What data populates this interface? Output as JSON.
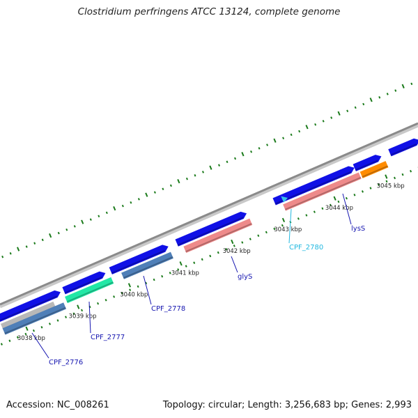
{
  "title": "Clostridium perfringens ATCC 13124, complete genome",
  "footer": {
    "accession": "Accession: NC_008261",
    "summary": "Topology: circular; Length: 3,256,683 bp; Genes: 2,993"
  },
  "colors": {
    "backbone": "#8a8a8a",
    "forward_cds": "#1010e6",
    "orf_salmon": "#ee8a8a",
    "orf_steelblue": "#4f7fb8",
    "orf_aqua": "#22e8a6",
    "orf_grey": "#b8b8b8",
    "orf_orange": "#ff8c00",
    "rna_cyan": "#38c0e8",
    "tick_green": "#1a7a1a",
    "label_navy": "#1515b0",
    "label_cyan": "#20b8e0"
  },
  "kbp_ticks": [
    "3038 kbp",
    "3039 kbp",
    "3040 kbp",
    "3041 kbp",
    "3042 kbp",
    "3043 kbp",
    "3044 kbp",
    "3045 kbp"
  ],
  "genes": [
    {
      "label": "CPF_2776",
      "kind": "navy"
    },
    {
      "label": "CPF_2777",
      "kind": "navy"
    },
    {
      "label": "CPF_2778",
      "kind": "navy"
    },
    {
      "label": "glyS",
      "kind": "navy"
    },
    {
      "label": "CPF_2780",
      "kind": "cyan"
    },
    {
      "label": "lysS",
      "kind": "navy"
    }
  ]
}
